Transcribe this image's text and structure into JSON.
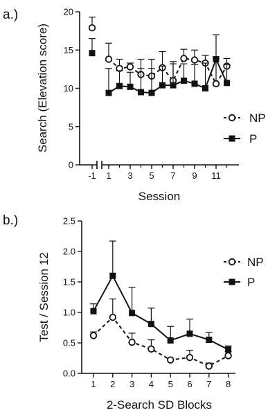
{
  "chart_data": [
    {
      "type": "line",
      "panel_label": "a.)",
      "ylabel": "Search (Elevation score)",
      "xlabel": "Session",
      "ylim": [
        0,
        20
      ],
      "y_ticks": [
        "0",
        "5",
        "10",
        "15",
        "20"
      ],
      "x_ticks": [
        "-1",
        "1",
        "3",
        "5",
        "7",
        "9",
        "11"
      ],
      "x_axis_broken": true,
      "legend_position": "right",
      "series": [
        {
          "name": "NP",
          "marker": "open-circle",
          "line_style": "dashed",
          "x": [
            -1,
            1,
            2,
            3,
            4,
            5,
            6,
            7,
            8,
            9,
            10,
            11,
            12
          ],
          "values": [
            17.9,
            13.8,
            12.6,
            12.8,
            11.8,
            11.6,
            12.7,
            11.0,
            13.9,
            13.7,
            13.3,
            10.6,
            12.9
          ],
          "error_upper": [
            19.3,
            15.9,
            13.8,
            13.3,
            13.8,
            13.8,
            14.8,
            13.5,
            15.1,
            15.0,
            14.3,
            13.9,
            13.9
          ]
        },
        {
          "name": "P",
          "marker": "filled-square",
          "line_style": "solid",
          "x": [
            -1,
            1,
            2,
            3,
            4,
            5,
            6,
            7,
            8,
            9,
            10,
            11,
            12
          ],
          "values": [
            14.6,
            9.4,
            10.3,
            10.2,
            9.5,
            9.4,
            10.4,
            10.4,
            11.0,
            10.6,
            10.0,
            13.8,
            10.7
          ],
          "error_upper": [
            16.5,
            12.6,
            12.3,
            12.1,
            12.6,
            12.6,
            12.9,
            13.2,
            13.2,
            13.1,
            13.3,
            17.0,
            13.1
          ]
        }
      ]
    },
    {
      "type": "line",
      "panel_label": "b.)",
      "ylabel": "Test / Session 12",
      "xlabel": "2-Search SD Blocks",
      "ylim": [
        0,
        2.5
      ],
      "y_ticks": [
        "0.0",
        "0.5",
        "1.0",
        "1.5",
        "2.0",
        "2.5"
      ],
      "x_ticks": [
        "1",
        "2",
        "3",
        "4",
        "5",
        "6",
        "7",
        "8"
      ],
      "legend_position": "right",
      "series": [
        {
          "name": "NP",
          "marker": "open-circle",
          "line_style": "dashed",
          "x": [
            1,
            2,
            3,
            4,
            5,
            6,
            7,
            8
          ],
          "values": [
            0.62,
            0.92,
            0.51,
            0.4,
            0.22,
            0.26,
            0.12,
            0.29
          ],
          "error_upper": [
            0.68,
            1.22,
            0.66,
            0.55,
            0.24,
            0.38,
            0.17,
            0.36
          ]
        },
        {
          "name": "P",
          "marker": "filled-square",
          "line_style": "solid",
          "x": [
            1,
            2,
            3,
            4,
            5,
            6,
            7,
            8
          ],
          "values": [
            1.02,
            1.6,
            0.99,
            0.81,
            0.54,
            0.65,
            0.55,
            0.39
          ],
          "error_upper": [
            1.14,
            2.17,
            1.41,
            1.07,
            0.77,
            0.89,
            0.67,
            0.45
          ]
        }
      ]
    }
  ]
}
